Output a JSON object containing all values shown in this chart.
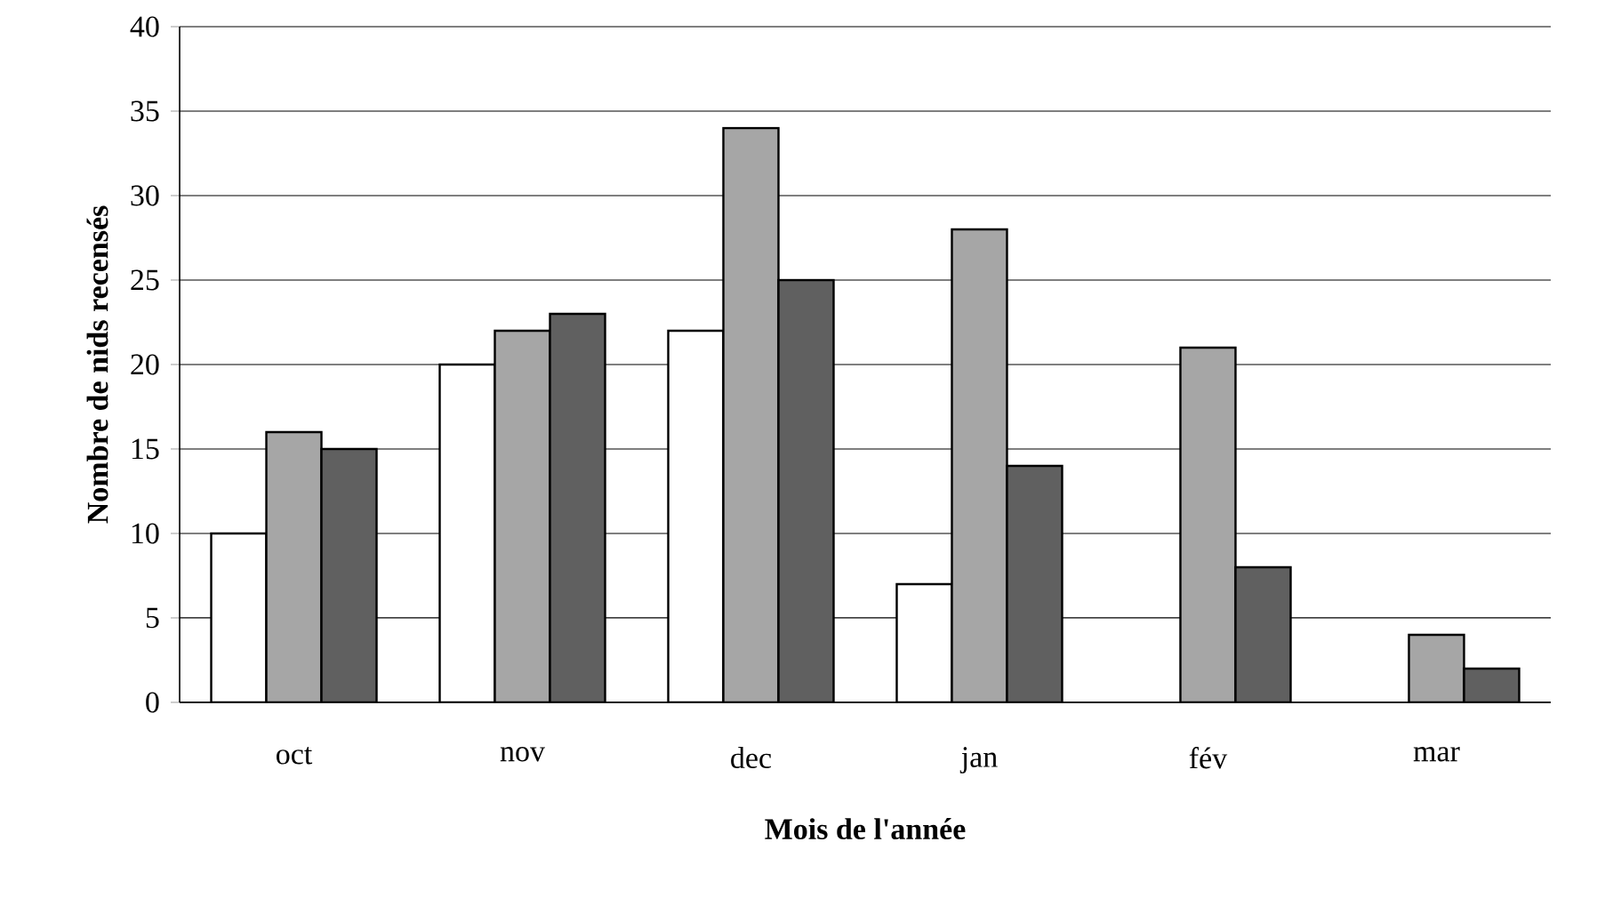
{
  "chart_data": {
    "type": "bar",
    "xlabel": "Mois de l'année",
    "ylabel": "Nombre de nids recensés",
    "categories": [
      "oct",
      "nov",
      "dec",
      "jan",
      "fév",
      "mar"
    ],
    "series": [
      {
        "color": "#ffffff",
        "values": [
          10,
          20,
          22,
          7,
          null,
          null
        ]
      },
      {
        "color": "#a6a6a6",
        "values": [
          16,
          22,
          34,
          28,
          21,
          4
        ]
      },
      {
        "color": "#606060",
        "values": [
          15,
          23,
          25,
          14,
          8,
          2
        ]
      }
    ],
    "ylim": [
      0,
      40
    ],
    "yticks": [
      0,
      5,
      10,
      15,
      20,
      25,
      30,
      35,
      40
    ],
    "grid": "y"
  }
}
